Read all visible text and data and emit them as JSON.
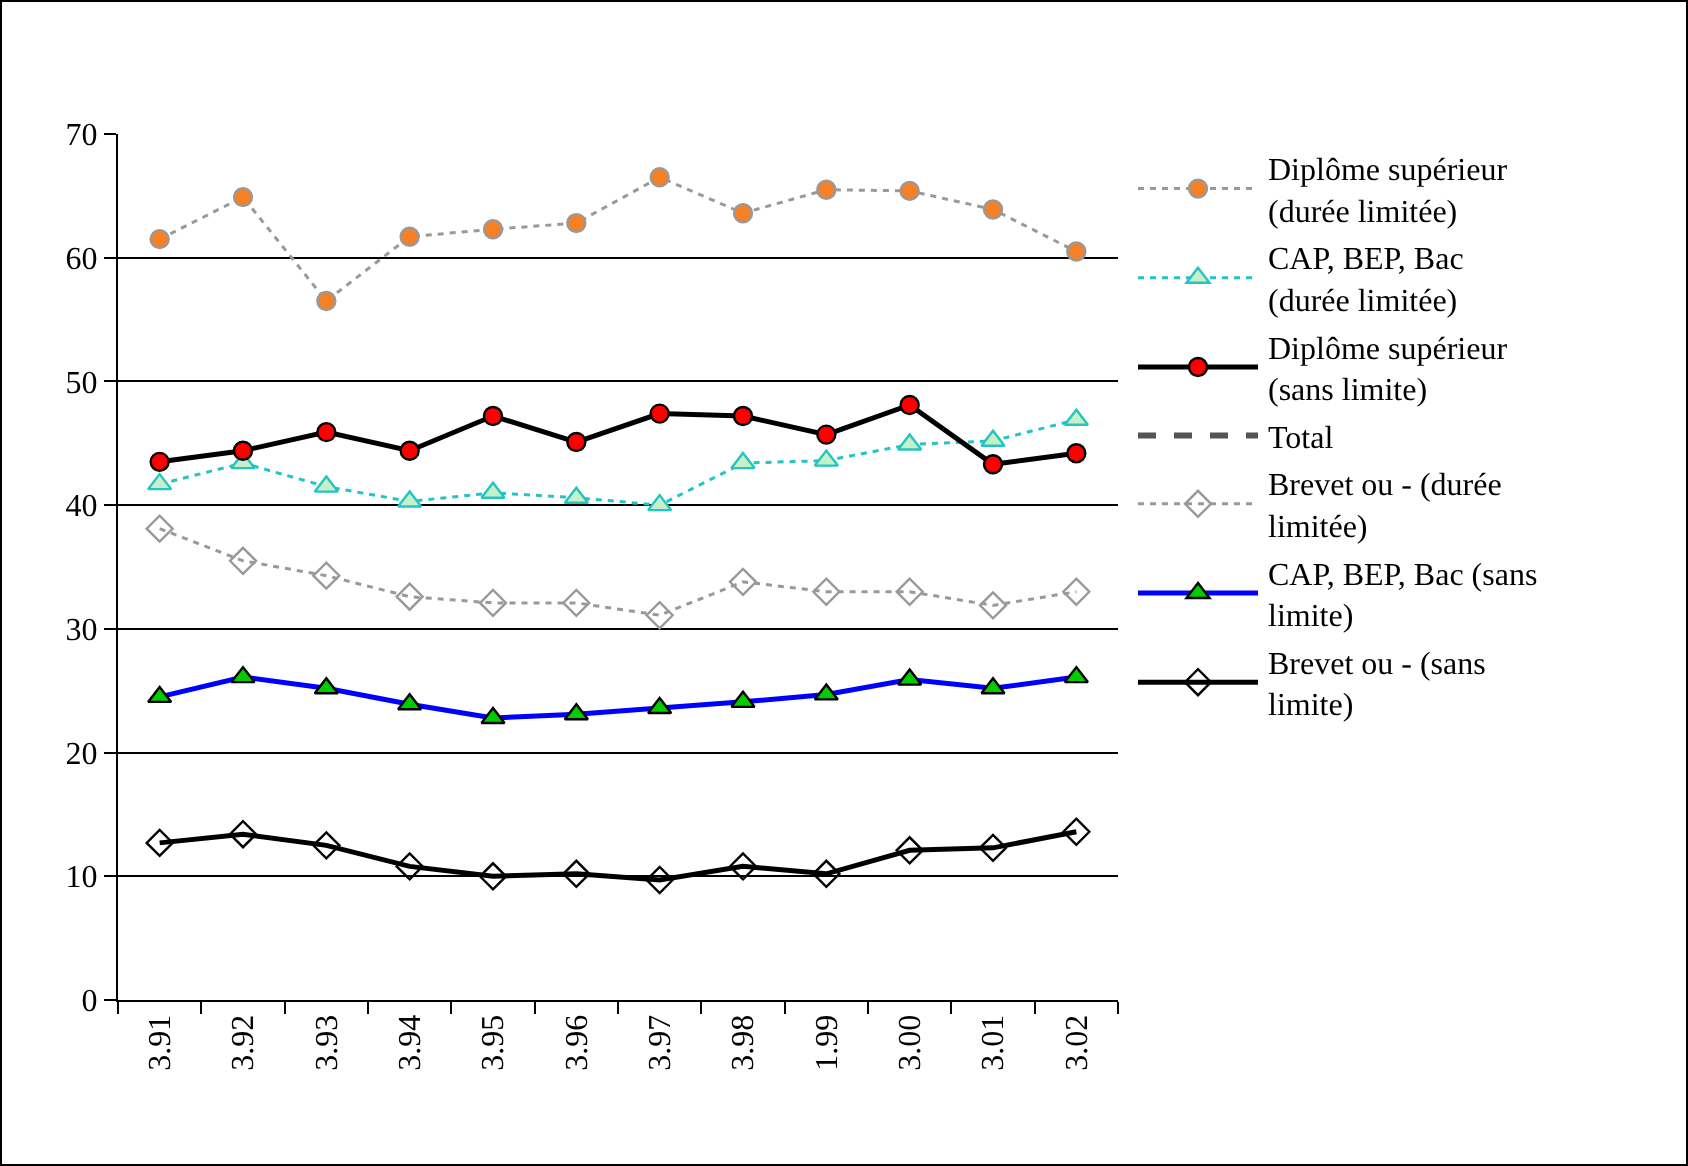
{
  "chart_data": {
    "type": "line",
    "categories": [
      "3.91",
      "3.92",
      "3.93",
      "3.94",
      "3.95",
      "3.96",
      "3.97",
      "3.98",
      "1.99",
      "3.00",
      "3.01",
      "3.02"
    ],
    "ylim": [
      0,
      70
    ],
    "yticks": [
      0,
      10,
      20,
      30,
      40,
      50,
      60,
      70
    ],
    "grid": "y",
    "legend": "right",
    "marker": "circle",
    "series": [
      {
        "name": "Diplôme supérieur (durée limitée)",
        "color": "#999999",
        "colors": [
          "#f58025",
          "#f58025",
          "#f58025",
          "#f58025",
          "#f58025",
          "#f58025",
          "#f58025",
          "#f58025",
          "#f58025",
          "#f58025",
          "#f58025",
          "#f58025"
        ],
        "line_style": "dotted",
        "values": [
          61.5,
          64.9,
          56.5,
          61.7,
          62.3,
          62.8,
          66.5,
          63.6,
          65.5,
          65.4,
          63.9,
          60.5
        ]
      },
      {
        "name": "CAP, BEP, Bac (durée limitée)",
        "color": "#22c4c4",
        "colors": [
          "#c8f0c8",
          "#c8f0c8",
          "#c8f0c8",
          "#c8f0c8",
          "#c8f0c8",
          "#c8f0c8",
          "#c8f0c8",
          "#c8f0c8",
          "#c8f0c8",
          "#c8f0c8",
          "#c8f0c8",
          "#c8f0c8"
        ],
        "marker": "triangle",
        "line_style": "dotted",
        "values": [
          41.7,
          43.4,
          41.5,
          40.3,
          41.0,
          40.6,
          40.0,
          43.4,
          43.6,
          44.9,
          45.2,
          46.9
        ]
      },
      {
        "name": "Diplôme supérieur (sans limite)",
        "color": "#000000",
        "colors": [
          "#ff0000",
          "#ff0000",
          "#ff0000",
          "#ff0000",
          "#ff0000",
          "#ff0000",
          "#ff0000",
          "#ff0000",
          "#ff0000",
          "#ff0000",
          "#ff0000",
          "#ff0000"
        ],
        "line_style": "solid",
        "values": [
          43.5,
          44.4,
          45.9,
          44.4,
          47.2,
          45.1,
          47.4,
          47.2,
          45.7,
          48.1,
          43.3,
          44.2
        ]
      },
      {
        "name": "Total",
        "color": "#555555",
        "marker": "none",
        "line_style": "dashed",
        "values": [
          null,
          null,
          null,
          null,
          null,
          null,
          null,
          null,
          null,
          null,
          null,
          null
        ]
      },
      {
        "name": "Brevet ou - (durée limitée)",
        "color": "#999999",
        "marker": "diamond",
        "line_style": "dotted",
        "values": [
          38.1,
          35.5,
          34.3,
          32.6,
          32.1,
          32.1,
          31.1,
          33.8,
          33.0,
          33.0,
          31.9,
          33.0
        ]
      },
      {
        "name": "CAP, BEP, Bac (sans limite)",
        "color": "#0000ff",
        "colors": [
          "#00cc00",
          "#00cc00",
          "#00cc00",
          "#00cc00",
          "#00cc00",
          "#00cc00",
          "#00cc00",
          "#00cc00",
          "#00cc00",
          "#00cc00",
          "#00cc00",
          "#00cc00"
        ],
        "marker": "triangle",
        "line_style": "solid",
        "values": [
          24.5,
          26.1,
          25.2,
          23.9,
          22.8,
          23.1,
          23.6,
          24.1,
          24.7,
          25.9,
          25.2,
          26.1
        ]
      },
      {
        "name": "Brevet ou - (sans limite)",
        "color": "#000000",
        "marker": "diamond",
        "line_style": "solid",
        "values": [
          12.7,
          13.4,
          12.5,
          10.8,
          10.0,
          10.2,
          9.7,
          10.8,
          10.2,
          12.1,
          12.3,
          13.6
        ]
      }
    ]
  }
}
